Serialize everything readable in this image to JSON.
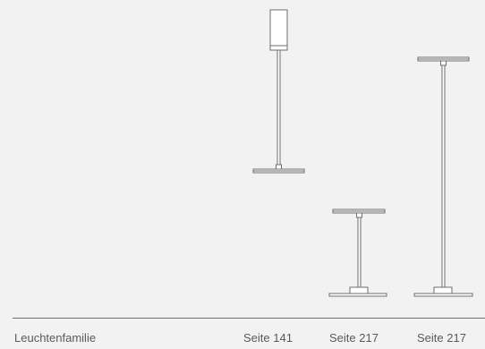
{
  "footer": {
    "family_label": "Leuchtenfamilie",
    "page_refs": [
      "Seite 141",
      "Seite 217",
      "Seite 217"
    ]
  },
  "colors": {
    "background": "#f2f2f2",
    "line": "#6e6e6e",
    "fill": "#ffffff",
    "text": "#5a5a5a"
  }
}
